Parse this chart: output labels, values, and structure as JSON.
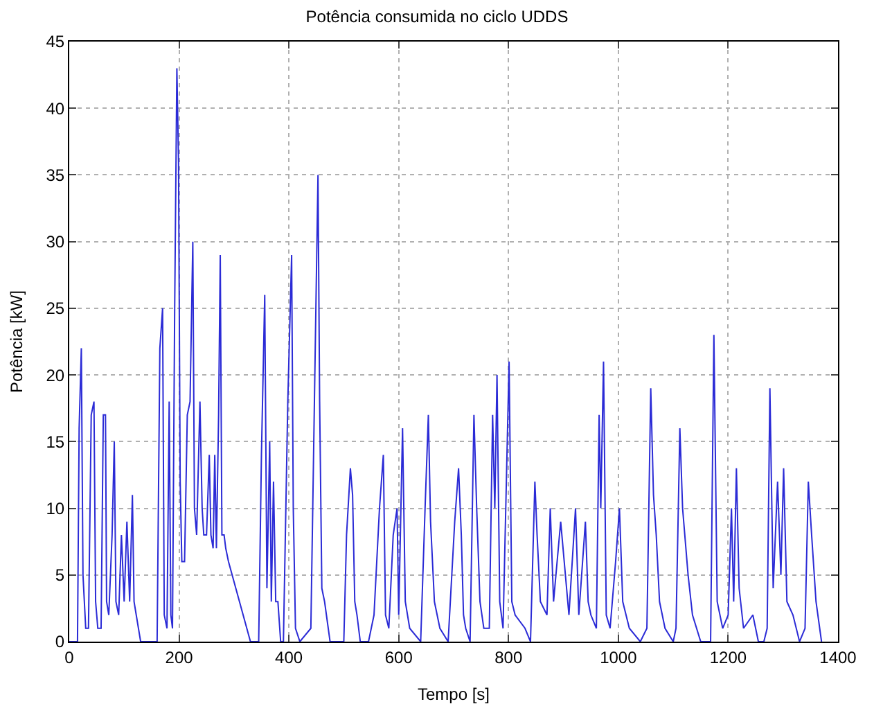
{
  "chart_data": {
    "type": "line",
    "title": "Potência consumida no ciclo UDDS",
    "xlabel": "Tempo [s]",
    "ylabel": "Potência [kW]",
    "x": [
      0,
      15,
      18,
      22,
      25,
      30,
      35,
      40,
      45,
      48,
      52,
      58,
      62,
      66,
      68,
      72,
      78,
      82,
      85,
      90,
      95,
      100,
      105,
      110,
      115,
      118,
      122,
      130,
      160,
      165,
      170,
      173,
      178,
      182,
      185,
      188,
      192,
      196,
      199,
      202,
      205,
      210,
      215,
      220,
      225,
      228,
      232,
      238,
      242,
      245,
      250,
      255,
      258,
      262,
      265,
      268,
      272,
      275,
      278,
      282,
      285,
      290,
      310,
      330,
      345,
      350,
      356,
      360,
      365,
      368,
      372,
      376,
      380,
      385,
      390,
      398,
      405,
      408,
      412,
      420,
      440,
      448,
      453,
      456,
      460,
      465,
      475,
      500,
      505,
      512,
      516,
      520,
      524,
      530,
      535,
      545,
      555,
      565,
      572,
      576,
      582,
      590,
      597,
      600,
      607,
      612,
      620,
      640,
      648,
      654,
      658,
      665,
      675,
      690,
      702,
      709,
      714,
      718,
      722,
      730,
      737,
      742,
      748,
      755,
      765,
      771,
      775,
      779,
      784,
      790,
      801,
      806,
      812,
      830,
      840,
      848,
      852,
      858,
      870,
      876,
      882,
      895,
      910,
      922,
      928,
      940,
      945,
      950,
      960,
      965,
      968,
      973,
      978,
      985,
      995,
      1002,
      1008,
      1020,
      1040,
      1052,
      1059,
      1064,
      1069,
      1075,
      1085,
      1100,
      1105,
      1112,
      1117,
      1127,
      1135,
      1150,
      1168,
      1174,
      1180,
      1190,
      1200,
      1206,
      1210,
      1215,
      1220,
      1228,
      1245,
      1255,
      1265,
      1271,
      1276,
      1282,
      1290,
      1296,
      1301,
      1307,
      1318,
      1330,
      1340,
      1346,
      1352,
      1360,
      1370
    ],
    "series": [
      {
        "color": "#2b2bd6",
        "values": [
          0,
          0,
          16,
          22,
          5,
          1,
          1,
          17,
          18,
          3,
          1,
          1,
          17,
          17,
          3,
          2,
          8,
          15,
          3,
          2,
          8,
          3,
          9,
          3,
          11,
          3,
          2,
          0,
          0,
          22,
          25,
          2,
          1,
          18,
          2,
          1,
          25,
          43,
          36,
          12,
          6,
          6,
          17,
          18,
          30,
          10,
          8,
          18,
          10,
          8,
          8,
          14,
          8,
          7,
          14,
          7,
          17,
          29,
          8,
          8,
          7,
          6,
          3,
          0,
          0,
          14,
          26,
          4,
          15,
          3,
          12,
          3,
          3,
          0,
          0,
          18,
          29,
          10,
          1,
          0,
          1,
          22,
          35,
          18,
          4,
          3,
          0,
          0,
          8,
          13,
          11,
          3,
          2,
          0,
          0,
          0,
          2,
          10,
          14,
          2,
          1,
          8,
          10,
          2,
          16,
          3,
          1,
          0,
          10,
          17,
          9,
          3,
          1,
          0,
          9,
          13,
          8,
          2,
          1,
          0,
          17,
          10,
          3,
          1,
          1,
          17,
          10,
          20,
          3,
          1,
          21,
          3,
          2,
          1,
          0,
          12,
          8,
          3,
          2,
          10,
          3,
          9,
          2,
          10,
          2,
          9,
          3,
          2,
          1,
          17,
          10,
          21,
          2,
          1,
          6,
          10,
          3,
          1,
          0,
          1,
          19,
          11,
          8,
          3,
          1,
          0,
          1,
          16,
          10,
          5,
          2,
          0,
          0,
          23,
          3,
          1,
          2,
          10,
          3,
          13,
          4,
          1,
          2,
          0,
          0,
          1,
          19,
          4,
          12,
          5,
          13,
          3,
          2,
          0,
          1,
          12,
          8,
          3,
          0
        ]
      }
    ],
    "xlim": [
      0,
      1400
    ],
    "xticks": [
      0,
      200,
      400,
      600,
      800,
      1000,
      1200,
      1400
    ],
    "ylim": [
      0,
      45
    ],
    "yticks": [
      0,
      5,
      10,
      15,
      20,
      25,
      30,
      35,
      40,
      45
    ],
    "grid": true,
    "marker": "none",
    "line_style": "solid"
  }
}
